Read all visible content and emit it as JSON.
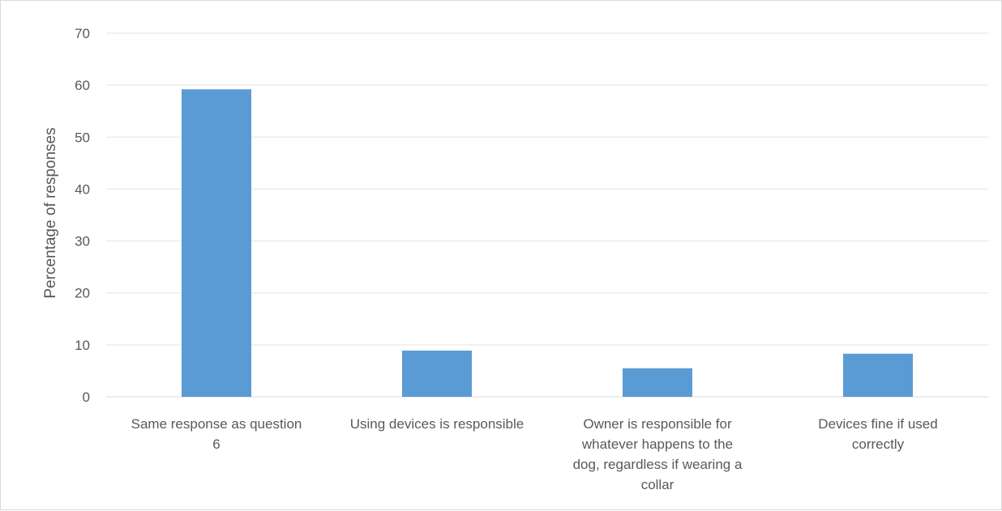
{
  "chart_data": {
    "type": "bar",
    "title": "",
    "xlabel": "",
    "ylabel": "Percentage of responses",
    "ylim": [
      0,
      70
    ],
    "yticks": [
      0,
      10,
      20,
      30,
      40,
      50,
      60,
      70
    ],
    "grid": true,
    "legend": "none",
    "bar_color": "#5b9bd5",
    "categories": [
      [
        "Same response as question",
        "6"
      ],
      [
        "Using devices is responsible"
      ],
      [
        "Owner is responsible for",
        "whatever happens to the",
        "dog, regardless if wearing a",
        "collar"
      ],
      [
        "Devices fine if used",
        "correctly"
      ]
    ],
    "values": [
      59.2,
      8.9,
      5.5,
      8.3
    ]
  }
}
